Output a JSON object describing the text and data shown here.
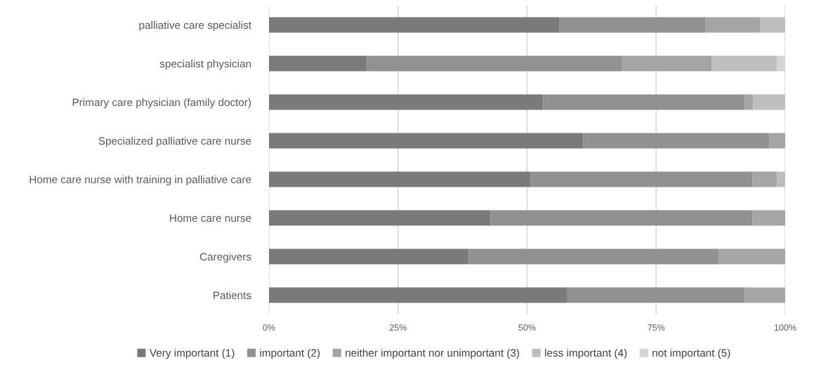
{
  "chart_data": {
    "type": "bar",
    "orientation": "horizontal",
    "stacked": true,
    "categories": [
      "palliative care specialist",
      "specialist physician",
      "Primary care physician (family doctor)",
      "Specialized palliative care nurse",
      "Home care nurse with training in palliative care",
      "Home care nurse",
      "Caregivers",
      "Patients"
    ],
    "series": [
      {
        "name": "Very important (1)",
        "color": "#7a7a7a",
        "values": [
          56.2,
          19.0,
          53.1,
          60.9,
          50.7,
          42.9,
          38.7,
          57.8
        ]
      },
      {
        "name": "important (2)",
        "color": "#919191",
        "values": [
          28.3,
          49.3,
          39.1,
          36.0,
          43.0,
          50.8,
          48.4,
          34.4
        ]
      },
      {
        "name": "neither important nor unimportant (3)",
        "color": "#a5a5a5",
        "values": [
          10.7,
          17.5,
          1.6,
          3.1,
          4.7,
          6.3,
          12.9,
          7.8
        ]
      },
      {
        "name": "less important (4)",
        "color": "#bebebe",
        "values": [
          4.8,
          12.6,
          6.2,
          0,
          1.6,
          0,
          0,
          0
        ]
      },
      {
        "name": "not important (5)",
        "color": "#d4d4d4",
        "values": [
          0,
          1.6,
          0,
          0,
          0,
          0,
          0,
          0
        ]
      }
    ],
    "xlim": [
      0,
      100
    ],
    "xticks": [
      {
        "value": 0,
        "label": "0%"
      },
      {
        "value": 25,
        "label": "25%"
      },
      {
        "value": 50,
        "label": "50%"
      },
      {
        "value": 75,
        "label": "75%"
      },
      {
        "value": 100,
        "label": "100%"
      }
    ],
    "grid": "x",
    "legend": "bottom"
  }
}
